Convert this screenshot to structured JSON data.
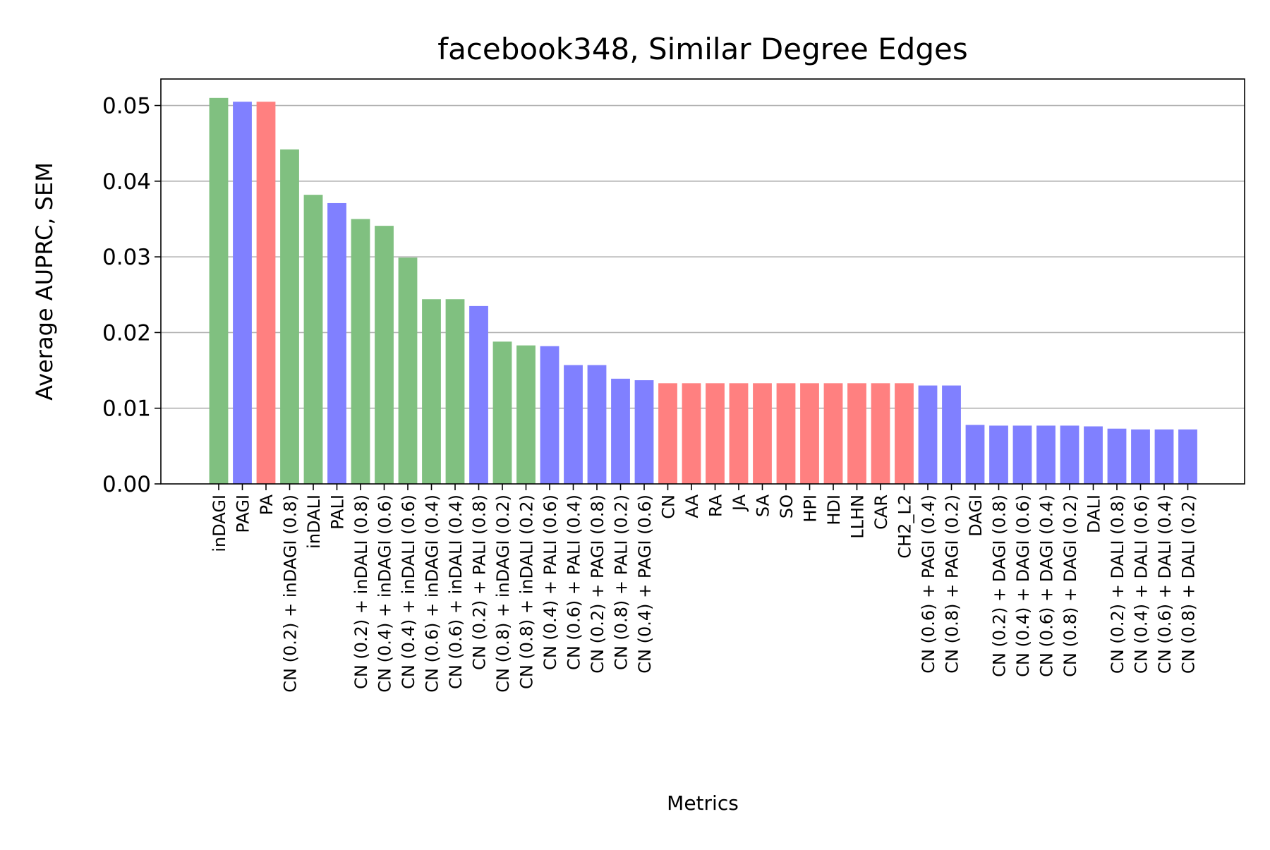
{
  "chart_data": {
    "type": "bar",
    "title": "facebook348, Similar Degree Edges",
    "xlabel": "Metrics",
    "ylabel": "Average AUPRC, SEM",
    "ylim": [
      0,
      0.0535
    ],
    "yticks": [
      "0.00",
      "0.01",
      "0.02",
      "0.03",
      "0.04",
      "0.05"
    ],
    "grid": "horizontal",
    "colors": {
      "green": "#80c080",
      "blue": "#8080ff",
      "red": "#ff8080"
    },
    "bars": [
      {
        "label": "inDAGI",
        "value": 0.051,
        "color": "green"
      },
      {
        "label": "PAGI",
        "value": 0.0505,
        "color": "blue"
      },
      {
        "label": "PA",
        "value": 0.0505,
        "color": "red"
      },
      {
        "label": "CN (0.2) + inDAGI (0.8)",
        "value": 0.0442,
        "color": "green"
      },
      {
        "label": "inDALI",
        "value": 0.0382,
        "color": "green"
      },
      {
        "label": "PALI",
        "value": 0.0371,
        "color": "blue"
      },
      {
        "label": "CN (0.2) + inDALI (0.8)",
        "value": 0.035,
        "color": "green"
      },
      {
        "label": "CN (0.4) + inDAGI (0.6)",
        "value": 0.0341,
        "color": "green"
      },
      {
        "label": "CN (0.4) + inDALI (0.6)",
        "value": 0.0299,
        "color": "green"
      },
      {
        "label": "CN (0.6) + inDAGI (0.4)",
        "value": 0.0244,
        "color": "green"
      },
      {
        "label": "CN (0.6) + inDALI (0.4)",
        "value": 0.0244,
        "color": "green"
      },
      {
        "label": "CN (0.2) + PALI (0.8)",
        "value": 0.0235,
        "color": "blue"
      },
      {
        "label": "CN (0.8) + inDAGI (0.2)",
        "value": 0.0188,
        "color": "green"
      },
      {
        "label": "CN (0.8) + inDALI (0.2)",
        "value": 0.0183,
        "color": "green"
      },
      {
        "label": "CN (0.4) + PALI (0.6)",
        "value": 0.0182,
        "color": "blue"
      },
      {
        "label": "CN (0.6) + PALI (0.4)",
        "value": 0.0157,
        "color": "blue"
      },
      {
        "label": "CN (0.2) + PAGI (0.8)",
        "value": 0.0157,
        "color": "blue"
      },
      {
        "label": "CN (0.8) + PALI (0.2)",
        "value": 0.0139,
        "color": "blue"
      },
      {
        "label": "CN (0.4) + PAGI (0.6)",
        "value": 0.0137,
        "color": "blue"
      },
      {
        "label": "CN",
        "value": 0.0133,
        "color": "red"
      },
      {
        "label": "AA",
        "value": 0.0133,
        "color": "red"
      },
      {
        "label": "RA",
        "value": 0.0133,
        "color": "red"
      },
      {
        "label": "JA",
        "value": 0.0133,
        "color": "red"
      },
      {
        "label": "SA",
        "value": 0.0133,
        "color": "red"
      },
      {
        "label": "SO",
        "value": 0.0133,
        "color": "red"
      },
      {
        "label": "HPI",
        "value": 0.0133,
        "color": "red"
      },
      {
        "label": "HDI",
        "value": 0.0133,
        "color": "red"
      },
      {
        "label": "LLHN",
        "value": 0.0133,
        "color": "red"
      },
      {
        "label": "CAR",
        "value": 0.0133,
        "color": "red"
      },
      {
        "label": "CH2_L2",
        "value": 0.0133,
        "color": "red"
      },
      {
        "label": "CN (0.6) + PAGI (0.4)",
        "value": 0.013,
        "color": "blue"
      },
      {
        "label": "CN (0.8) + PAGI (0.2)",
        "value": 0.013,
        "color": "blue"
      },
      {
        "label": "DAGI",
        "value": 0.0078,
        "color": "blue"
      },
      {
        "label": "CN (0.2) + DAGI (0.8)",
        "value": 0.0077,
        "color": "blue"
      },
      {
        "label": "CN (0.4) + DAGI (0.6)",
        "value": 0.0077,
        "color": "blue"
      },
      {
        "label": "CN (0.6) + DAGI (0.4)",
        "value": 0.0077,
        "color": "blue"
      },
      {
        "label": "CN (0.8) + DAGI (0.2)",
        "value": 0.0077,
        "color": "blue"
      },
      {
        "label": "DALI",
        "value": 0.0076,
        "color": "blue"
      },
      {
        "label": "CN (0.2) + DALI (0.8)",
        "value": 0.0073,
        "color": "blue"
      },
      {
        "label": "CN (0.4) + DALI (0.6)",
        "value": 0.0072,
        "color": "blue"
      },
      {
        "label": "CN (0.6) + DALI (0.4)",
        "value": 0.0072,
        "color": "blue"
      },
      {
        "label": "CN (0.8) + DALI (0.2)",
        "value": 0.0072,
        "color": "blue"
      }
    ]
  }
}
